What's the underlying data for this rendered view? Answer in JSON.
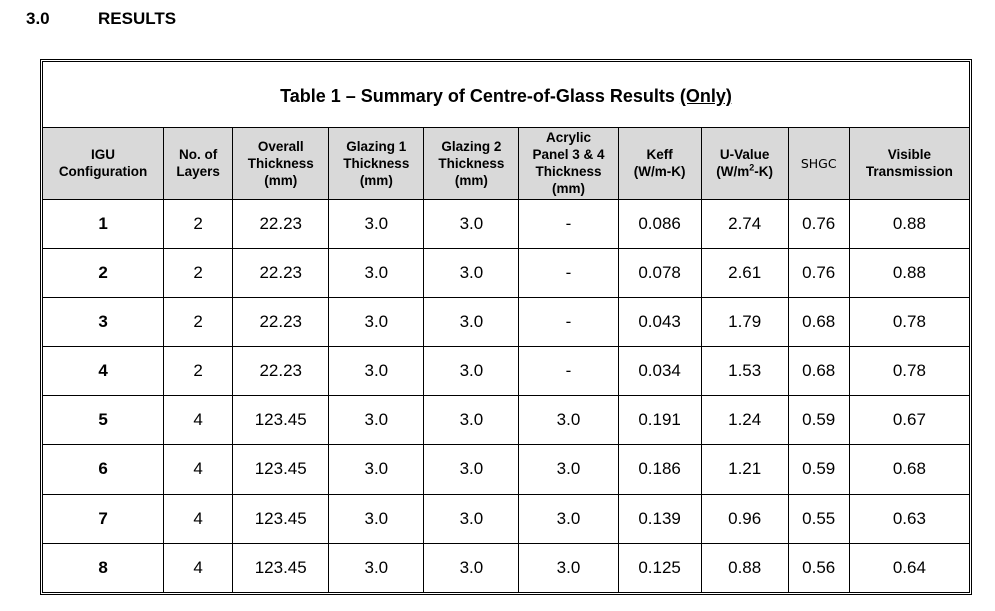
{
  "section": {
    "number": "3.0",
    "title": "RESULTS"
  },
  "table": {
    "caption": "Table 1 – Summary of Centre-of-Glass Results",
    "caption_emphasis": "(Only)",
    "header_background": "#d9d9d9",
    "columns": [
      {
        "lines": [
          "IGU",
          "Configuration"
        ]
      },
      {
        "lines": [
          "No. of",
          "Layers"
        ]
      },
      {
        "lines": [
          "Overall",
          "Thickness",
          "(mm)"
        ]
      },
      {
        "lines": [
          "Glazing 1",
          "Thickness",
          "(mm)"
        ]
      },
      {
        "lines": [
          "Glazing 2",
          "Thickness",
          "(mm)"
        ]
      },
      {
        "lines": [
          "Acrylic",
          "Panel 3 & 4",
          "Thickness",
          "(mm)"
        ]
      },
      {
        "lines": [
          "Keff",
          "(W/m-K)"
        ]
      },
      {
        "lines": [
          "U-Value",
          "(W/m",
          "2",
          "-K)"
        ]
      },
      {
        "lines": [
          "SHGC"
        ]
      },
      {
        "lines": [
          "Visible",
          "Transmission"
        ]
      }
    ],
    "rows": [
      [
        "1",
        "2",
        "22.23",
        "3.0",
        "3.0",
        "-",
        "0.086",
        "2.74",
        "0.76",
        "0.88"
      ],
      [
        "2",
        "2",
        "22.23",
        "3.0",
        "3.0",
        "-",
        "0.078",
        "2.61",
        "0.76",
        "0.88"
      ],
      [
        "3",
        "2",
        "22.23",
        "3.0",
        "3.0",
        "-",
        "0.043",
        "1.79",
        "0.68",
        "0.78"
      ],
      [
        "4",
        "2",
        "22.23",
        "3.0",
        "3.0",
        "-",
        "0.034",
        "1.53",
        "0.68",
        "0.78"
      ],
      [
        "5",
        "4",
        "123.45",
        "3.0",
        "3.0",
        "3.0",
        "0.191",
        "1.24",
        "0.59",
        "0.67"
      ],
      [
        "6",
        "4",
        "123.45",
        "3.0",
        "3.0",
        "3.0",
        "0.186",
        "1.21",
        "0.59",
        "0.68"
      ],
      [
        "7",
        "4",
        "123.45",
        "3.0",
        "3.0",
        "3.0",
        "0.139",
        "0.96",
        "0.55",
        "0.63"
      ],
      [
        "8",
        "4",
        "123.45",
        "3.0",
        "3.0",
        "3.0",
        "0.125",
        "0.88",
        "0.56",
        "0.64"
      ]
    ]
  }
}
